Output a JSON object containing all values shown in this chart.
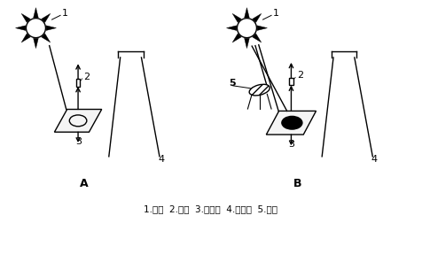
{
  "bg_color": "#ffffff",
  "line_color": "#000000",
  "caption": "1.太阳  2.探头  3.参考板  4.三角架  5.挡板",
  "caption_fontsize": 7.5,
  "label_fontsize": 8,
  "title_fontsize": 9
}
